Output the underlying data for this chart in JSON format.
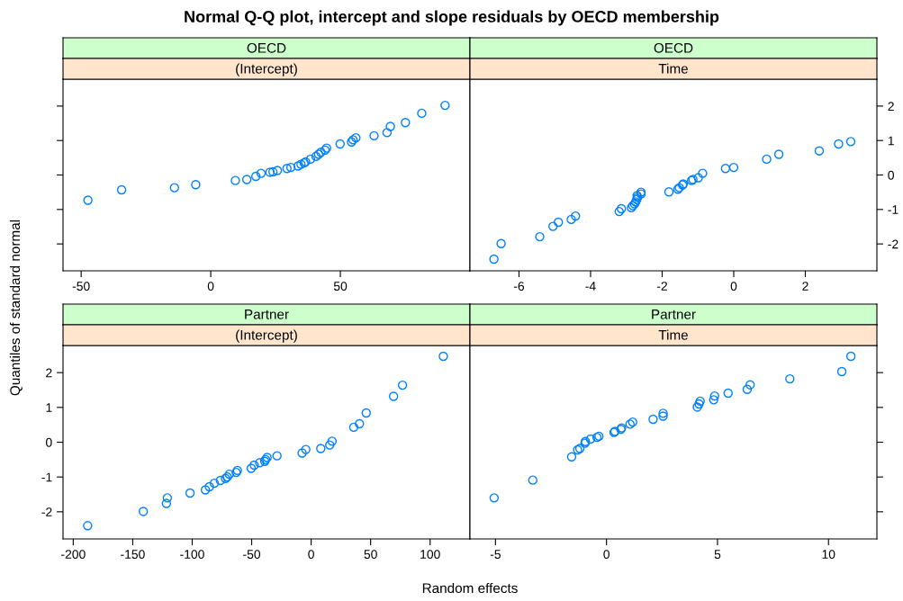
{
  "chart_data": [
    {
      "type": "scatter",
      "title": "OECD",
      "subtitle": "(Intercept)",
      "annotations": [
        "Normal Q-Q plot, intercept and slope residuals by OECD membership"
      ],
      "ylabel": "Quantiles of standard normal",
      "marker": "circle",
      "tick_labels": "x",
      "xlim": [
        -57,
        100
      ],
      "xticks": [
        -50,
        0,
        50
      ],
      "ylim": [
        -2.78,
        2.78
      ],
      "yticks": [
        {
          "value": -2,
          "label": null
        },
        {
          "value": -1,
          "label": null
        },
        {
          "value": 0,
          "label": null
        },
        {
          "value": 1,
          "label": null
        },
        {
          "value": 2,
          "label": null
        }
      ],
      "x": [
        -47.4,
        -34.4,
        -14.0,
        -5.8,
        9.5,
        13.9,
        17.4,
        19.4,
        22.8,
        24.0,
        25.7,
        29.4,
        30.9,
        33.7,
        34.8,
        36.0,
        36.6,
        38.5,
        40.6,
        41.6,
        42.5,
        44.1,
        44.7,
        49.9,
        54.3,
        54.9,
        56.0,
        63.0,
        68.0,
        69.3,
        75.1,
        81.4,
        90.4
      ],
      "series": [
        {
          "color": "#0080ff",
          "values": [
            -0.73,
            -0.43,
            -0.37,
            -0.28,
            -0.16,
            -0.13,
            -0.04,
            0.05,
            0.08,
            0.09,
            0.13,
            0.19,
            0.22,
            0.26,
            0.31,
            0.35,
            0.38,
            0.46,
            0.54,
            0.6,
            0.66,
            0.72,
            0.78,
            0.9,
            0.96,
            1.02,
            1.08,
            1.14,
            1.23,
            1.41,
            1.52,
            1.79,
            2.02
          ]
        }
      ]
    },
    {
      "type": "scatter",
      "title": "OECD",
      "subtitle": "Time",
      "marker": "circle",
      "xlim": [
        -7.37,
        4.0
      ],
      "xticks": [
        -6,
        -4,
        -2,
        0,
        2
      ],
      "ylim": [
        -2.78,
        2.78
      ],
      "yticks": [
        -2,
        -1,
        0,
        1,
        2
      ],
      "x": [
        -6.7,
        -6.5,
        -5.42,
        -5.05,
        -4.9,
        -4.54,
        -4.42,
        -3.2,
        -3.14,
        -2.86,
        -2.82,
        -2.77,
        -2.74,
        -2.71,
        -2.69,
        -2.7,
        -2.59,
        -2.59,
        -1.81,
        -1.56,
        -1.52,
        -1.43,
        -1.41,
        -1.18,
        -1.14,
        -0.99,
        -0.87,
        -0.23,
        0.0,
        0.92,
        1.26,
        2.39,
        2.93,
        3.27
      ],
      "series": [
        {
          "color": "#0080ff",
          "values": [
            -2.44,
            -1.99,
            -1.79,
            -1.49,
            -1.37,
            -1.29,
            -1.19,
            -1.06,
            -0.98,
            -0.95,
            -0.89,
            -0.84,
            -0.78,
            -0.71,
            -0.65,
            -0.6,
            -0.55,
            -0.5,
            -0.49,
            -0.41,
            -0.37,
            -0.29,
            -0.26,
            -0.16,
            -0.13,
            -0.08,
            0.05,
            0.19,
            0.22,
            0.46,
            0.6,
            0.7,
            0.9,
            0.97
          ]
        }
      ]
    },
    {
      "type": "scatter",
      "title": "Partner",
      "subtitle": "(Intercept)",
      "xlabel": "Random effects",
      "marker": "circle",
      "xlim": [
        -208.6,
        133.5
      ],
      "xticks": [
        -200,
        -150,
        -100,
        -50,
        0,
        50,
        100
      ],
      "ylim": [
        -2.78,
        2.78
      ],
      "yticks": [
        -2,
        -1,
        0,
        1,
        2
      ],
      "x": [
        -187.9,
        -141.1,
        -121.7,
        -120.9,
        -101.8,
        -88.9,
        -85.6,
        -81.4,
        -76.3,
        -72.0,
        -70.5,
        -68.8,
        -63.0,
        -62.0,
        -50.4,
        -47.9,
        -43.3,
        -39.0,
        -38.3,
        -37.0,
        -28.7,
        -7.6,
        -4.5,
        8.1,
        15.6,
        17.6,
        35.8,
        40.6,
        46.3,
        69.3,
        76.8,
        111.1
      ],
      "series": [
        {
          "color": "#0080ff",
          "values": [
            -2.4,
            -1.99,
            -1.76,
            -1.6,
            -1.46,
            -1.37,
            -1.28,
            -1.18,
            -1.1,
            -1.04,
            -1.0,
            -0.92,
            -0.87,
            -0.81,
            -0.75,
            -0.66,
            -0.59,
            -0.55,
            -0.5,
            -0.44,
            -0.39,
            -0.31,
            -0.21,
            -0.18,
            -0.08,
            0.03,
            0.43,
            0.53,
            0.84,
            1.32,
            1.64,
            2.47
          ]
        }
      ]
    },
    {
      "type": "scatter",
      "title": "Partner",
      "subtitle": "Time",
      "marker": "circle",
      "tick_labels": "x",
      "xlim": [
        -6.15,
        12.18
      ],
      "xticks": [
        -5,
        0,
        5,
        10
      ],
      "ylim": [
        -2.78,
        2.78
      ],
      "yticks": [
        {
          "value": -2,
          "label": null
        },
        {
          "value": -1,
          "label": null
        },
        {
          "value": 0,
          "label": null
        },
        {
          "value": 1,
          "label": null
        },
        {
          "value": 2,
          "label": null
        }
      ],
      "x": [
        -5.06,
        -3.32,
        -1.57,
        -1.3,
        -1.2,
        -0.97,
        -0.95,
        -0.72,
        -0.43,
        -0.34,
        0.34,
        0.38,
        0.65,
        0.68,
        1.06,
        1.18,
        2.1,
        2.55,
        2.55,
        4.09,
        4.17,
        4.22,
        4.83,
        4.87,
        5.48,
        6.34,
        6.47,
        8.26,
        10.6,
        11.01
      ],
      "series": [
        {
          "color": "#0080ff",
          "values": [
            -1.6,
            -1.09,
            -0.42,
            -0.22,
            -0.18,
            -0.03,
            0.02,
            0.09,
            0.14,
            0.17,
            0.28,
            0.31,
            0.37,
            0.41,
            0.52,
            0.58,
            0.66,
            0.75,
            0.83,
            1.01,
            1.1,
            1.18,
            1.22,
            1.33,
            1.41,
            1.52,
            1.65,
            1.82,
            2.03,
            2.47
          ]
        }
      ]
    }
  ]
}
